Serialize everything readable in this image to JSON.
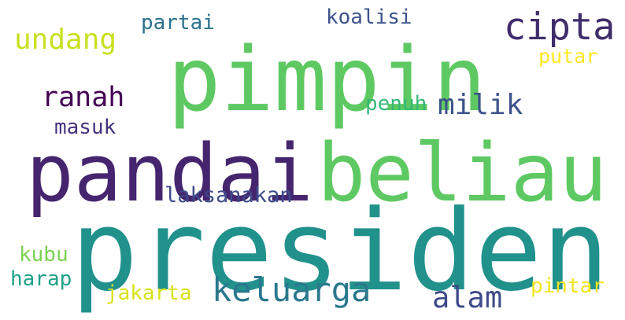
{
  "words": [
    {
      "text": "presiden",
      "color": "#21918c"
    },
    {
      "text": "pandai",
      "color": "#46256f"
    },
    {
      "text": "beliau",
      "color": "#5ec962"
    },
    {
      "text": "pimpin",
      "color": "#5ec962"
    },
    {
      "text": "cipta",
      "color": "#3f2d6b"
    },
    {
      "text": "undang",
      "color": "#c8e020"
    },
    {
      "text": "partai",
      "color": "#2c728e"
    },
    {
      "text": "koalisi",
      "color": "#3b528b"
    },
    {
      "text": "putar",
      "color": "#fde725"
    },
    {
      "text": "ranah",
      "color": "#440154"
    },
    {
      "text": "penuh",
      "color": "#35b779"
    },
    {
      "text": "milik",
      "color": "#3b528b"
    },
    {
      "text": "masuk",
      "color": "#46327e"
    },
    {
      "text": "laksanakan",
      "color": "#3e4a89"
    },
    {
      "text": "kubu",
      "color": "#7ad151"
    },
    {
      "text": "harap",
      "color": "#1fa187"
    },
    {
      "text": "jakarta",
      "color": "#d8e219"
    },
    {
      "text": "keluarga",
      "color": "#2a788e"
    },
    {
      "text": "alam",
      "color": "#3e4a89"
    },
    {
      "text": "pintar",
      "color": "#f1e51d"
    }
  ]
}
